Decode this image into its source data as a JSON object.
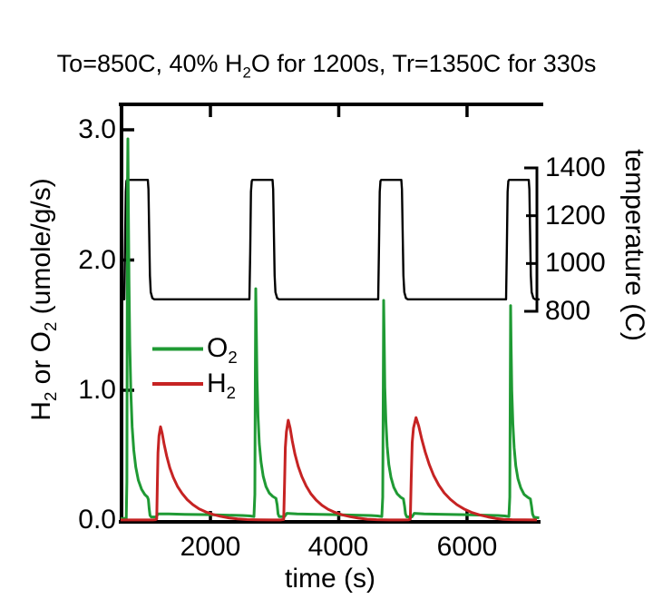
{
  "labels": {
    "title_parts": [
      {
        "t": "To=850C, 40% H"
      },
      {
        "t": "2",
        "sub": true
      },
      {
        "t": "O for 1200s, Tr=1350C for 330s"
      }
    ],
    "y_left_title_parts": [
      {
        "t": "H"
      },
      {
        "t": "2",
        "sub": true
      },
      {
        "t": " or O"
      },
      {
        "t": "2",
        "sub": true
      },
      {
        "t": " (umole/g/s)"
      }
    ],
    "y_right_title": "temperature (C)",
    "x_axis_title": "time (s)"
  },
  "axes": {
    "left": {
      "tick_labels": [
        "3.0",
        "2.0",
        "1.0",
        "0.0"
      ]
    },
    "bottom": {
      "tick_labels": [
        "2000",
        "4000",
        "6000"
      ]
    },
    "right": {
      "tick_labels": [
        "1400",
        "1200",
        "1000",
        "800"
      ]
    }
  },
  "legend": {
    "items": [
      {
        "label_parts": [
          {
            "t": "O"
          },
          {
            "t": "2",
            "sub": true
          }
        ],
        "series": "O2"
      },
      {
        "label_parts": [
          {
            "t": "H"
          },
          {
            "t": "2",
            "sub": true
          }
        ],
        "series": "H2"
      }
    ]
  },
  "colors": {
    "o2": "#1f9a34",
    "h2": "#c62323",
    "temperature": "#000000",
    "frame": "#000000"
  },
  "chart_data": {
    "type": "line",
    "title": "To=850C, 40% H2O for 1200s, Tr=1350C for 330s",
    "xlabel": "time (s)",
    "ylabel_left": "H2 or O2 (umole/g/s)",
    "ylabel_right": "temperature (C)",
    "xlim": [
      600,
      7160
    ],
    "ylim_left": [
      0.0,
      3.0
    ],
    "ylim_right": [
      800,
      1400
    ],
    "x_ticks": [
      2000,
      4000,
      6000
    ],
    "y_left_ticks": [
      3.0,
      2.0,
      1.0,
      0.0
    ],
    "y_right_ticks": [
      1400,
      1200,
      1000,
      800
    ],
    "grid": false,
    "legend_position": "inside-left-middle",
    "series": [
      {
        "name": "temperature",
        "axis": "right",
        "color": "#000000",
        "width": 2.4,
        "points": [
          [
            600,
            850
          ],
          [
            657,
            850
          ],
          [
            668,
            1050
          ],
          [
            680,
            1300
          ],
          [
            690,
            1345
          ],
          [
            699,
            1350
          ],
          [
            1024,
            1350
          ],
          [
            1034,
            1310
          ],
          [
            1044,
            1150
          ],
          [
            1056,
            950
          ],
          [
            1070,
            880
          ],
          [
            1095,
            855
          ],
          [
            1123,
            850
          ],
          [
            2608,
            850
          ],
          [
            2620,
            1050
          ],
          [
            2632,
            1300
          ],
          [
            2644,
            1345
          ],
          [
            2654,
            1350
          ],
          [
            2968,
            1350
          ],
          [
            2978,
            1310
          ],
          [
            2988,
            1150
          ],
          [
            3000,
            950
          ],
          [
            3014,
            880
          ],
          [
            3040,
            855
          ],
          [
            3067,
            850
          ],
          [
            4615,
            850
          ],
          [
            4627,
            1050
          ],
          [
            4639,
            1300
          ],
          [
            4651,
            1345
          ],
          [
            4662,
            1350
          ],
          [
            4976,
            1350
          ],
          [
            4986,
            1310
          ],
          [
            4996,
            1150
          ],
          [
            5008,
            950
          ],
          [
            5022,
            880
          ],
          [
            5048,
            855
          ],
          [
            5075,
            850
          ],
          [
            6608,
            850
          ],
          [
            6620,
            1050
          ],
          [
            6632,
            1300
          ],
          [
            6644,
            1345
          ],
          [
            6655,
            1350
          ],
          [
            6962,
            1350
          ],
          [
            6972,
            1310
          ],
          [
            6982,
            1150
          ],
          [
            6994,
            950
          ],
          [
            7008,
            880
          ],
          [
            7034,
            855
          ],
          [
            7061,
            850
          ],
          [
            7130,
            850
          ]
        ]
      },
      {
        "name": "O2",
        "axis": "left",
        "color": "#1f9a34",
        "width": 3,
        "points": [
          [
            600,
            0.015
          ],
          [
            688,
            0.015
          ],
          [
            697,
            0.3
          ],
          [
            703,
            1.6
          ],
          [
            708,
            2.6
          ],
          [
            713,
            2.93
          ],
          [
            720,
            2.45
          ],
          [
            730,
            1.85
          ],
          [
            743,
            1.35
          ],
          [
            760,
            0.98
          ],
          [
            780,
            0.72
          ],
          [
            805,
            0.54
          ],
          [
            836,
            0.41
          ],
          [
            876,
            0.31
          ],
          [
            926,
            0.24
          ],
          [
            976,
            0.2
          ],
          [
            1018,
            0.18
          ],
          [
            1032,
            0.16
          ],
          [
            1045,
            0.09
          ],
          [
            1058,
            0.04
          ],
          [
            1075,
            0.027
          ],
          [
            1150,
            0.027
          ],
          [
            1185,
            0.05
          ],
          [
            1350,
            0.05
          ],
          [
            1600,
            0.047
          ],
          [
            1900,
            0.045
          ],
          [
            2200,
            0.042
          ],
          [
            2500,
            0.038
          ],
          [
            2620,
            0.035
          ],
          [
            2678,
            0.03
          ],
          [
            2692,
            0.2
          ],
          [
            2700,
            1.1
          ],
          [
            2707,
            1.78
          ],
          [
            2715,
            1.48
          ],
          [
            2726,
            1.08
          ],
          [
            2742,
            0.8
          ],
          [
            2762,
            0.59
          ],
          [
            2788,
            0.45
          ],
          [
            2822,
            0.34
          ],
          [
            2866,
            0.26
          ],
          [
            2918,
            0.21
          ],
          [
            2972,
            0.185
          ],
          [
            3022,
            0.17
          ],
          [
            3040,
            0.12
          ],
          [
            3054,
            0.05
          ],
          [
            3072,
            0.03
          ],
          [
            3155,
            0.03
          ],
          [
            3192,
            0.055
          ],
          [
            3350,
            0.05
          ],
          [
            3600,
            0.048
          ],
          [
            3900,
            0.045
          ],
          [
            4200,
            0.042
          ],
          [
            4500,
            0.038
          ],
          [
            4610,
            0.035
          ],
          [
            4672,
            0.03
          ],
          [
            4686,
            0.18
          ],
          [
            4694,
            1.05
          ],
          [
            4700,
            1.69
          ],
          [
            4708,
            1.4
          ],
          [
            4719,
            1.02
          ],
          [
            4735,
            0.76
          ],
          [
            4755,
            0.57
          ],
          [
            4781,
            0.43
          ],
          [
            4815,
            0.33
          ],
          [
            4859,
            0.255
          ],
          [
            4911,
            0.205
          ],
          [
            4963,
            0.18
          ],
          [
            5008,
            0.165
          ],
          [
            5026,
            0.11
          ],
          [
            5041,
            0.05
          ],
          [
            5060,
            0.028
          ],
          [
            5143,
            0.028
          ],
          [
            5178,
            0.055
          ],
          [
            5330,
            0.05
          ],
          [
            5580,
            0.048
          ],
          [
            5880,
            0.045
          ],
          [
            6180,
            0.042
          ],
          [
            6480,
            0.038
          ],
          [
            6590,
            0.035
          ],
          [
            6652,
            0.03
          ],
          [
            6666,
            0.18
          ],
          [
            6673,
            1.0
          ],
          [
            6679,
            1.65
          ],
          [
            6687,
            1.36
          ],
          [
            6698,
            1.0
          ],
          [
            6714,
            0.74
          ],
          [
            6734,
            0.56
          ],
          [
            6760,
            0.42
          ],
          [
            6794,
            0.32
          ],
          [
            6838,
            0.25
          ],
          [
            6890,
            0.2
          ],
          [
            6942,
            0.18
          ],
          [
            6988,
            0.165
          ],
          [
            7006,
            0.11
          ],
          [
            7022,
            0.05
          ],
          [
            7042,
            0.025
          ],
          [
            7125,
            0.02
          ]
        ]
      },
      {
        "name": "H2",
        "axis": "left",
        "color": "#c62323",
        "width": 3,
        "points": [
          [
            600,
            0.004
          ],
          [
            1100,
            0.004
          ],
          [
            1145,
            0.006
          ],
          [
            1163,
            0.012
          ],
          [
            1172,
            0.28
          ],
          [
            1183,
            0.52
          ],
          [
            1198,
            0.65
          ],
          [
            1222,
            0.72
          ],
          [
            1247,
            0.67
          ],
          [
            1278,
            0.585
          ],
          [
            1318,
            0.495
          ],
          [
            1366,
            0.405
          ],
          [
            1422,
            0.33
          ],
          [
            1486,
            0.262
          ],
          [
            1558,
            0.208
          ],
          [
            1638,
            0.16
          ],
          [
            1726,
            0.122
          ],
          [
            1822,
            0.09
          ],
          [
            1926,
            0.066
          ],
          [
            2038,
            0.047
          ],
          [
            2158,
            0.032
          ],
          [
            2286,
            0.02
          ],
          [
            2422,
            0.012
          ],
          [
            2570,
            0.007
          ],
          [
            2750,
            0.005
          ],
          [
            2960,
            0.004
          ],
          [
            3090,
            0.004
          ],
          [
            3142,
            0.008
          ],
          [
            3156,
            0.3
          ],
          [
            3168,
            0.56
          ],
          [
            3184,
            0.68
          ],
          [
            3213,
            0.77
          ],
          [
            3242,
            0.71
          ],
          [
            3276,
            0.61
          ],
          [
            3318,
            0.51
          ],
          [
            3368,
            0.415
          ],
          [
            3426,
            0.335
          ],
          [
            3492,
            0.265
          ],
          [
            3566,
            0.205
          ],
          [
            3648,
            0.157
          ],
          [
            3738,
            0.117
          ],
          [
            3836,
            0.086
          ],
          [
            3942,
            0.062
          ],
          [
            4056,
            0.043
          ],
          [
            4178,
            0.029
          ],
          [
            4308,
            0.018
          ],
          [
            4446,
            0.01
          ],
          [
            4592,
            0.006
          ],
          [
            4790,
            0.004
          ],
          [
            5000,
            0.004
          ],
          [
            5085,
            0.005
          ],
          [
            5116,
            0.01
          ],
          [
            5130,
            0.32
          ],
          [
            5146,
            0.6
          ],
          [
            5165,
            0.71
          ],
          [
            5205,
            0.79
          ],
          [
            5247,
            0.725
          ],
          [
            5294,
            0.625
          ],
          [
            5349,
            0.525
          ],
          [
            5411,
            0.43
          ],
          [
            5481,
            0.345
          ],
          [
            5559,
            0.272
          ],
          [
            5645,
            0.212
          ],
          [
            5739,
            0.163
          ],
          [
            5841,
            0.122
          ],
          [
            5951,
            0.089
          ],
          [
            6069,
            0.063
          ],
          [
            6195,
            0.043
          ],
          [
            6329,
            0.027
          ],
          [
            6445,
            0.016
          ],
          [
            6563,
            0.009
          ],
          [
            6700,
            0.006
          ],
          [
            6900,
            0.005
          ],
          [
            7090,
            0.004
          ]
        ]
      }
    ]
  }
}
